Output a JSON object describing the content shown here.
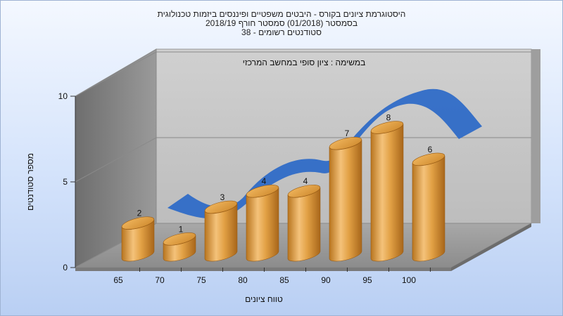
{
  "title_lines": [
    "היסטוגרמת ציונים בקורס - היבטים משפטיים ופיננסים ביזמות טכנולוגית",
    "בסמסטר  (01/2018)  סמסטר חורף 2018/19",
    "סטודנטים רשומים - 38"
  ],
  "subtitle": "במשימה : ציון סופי במחשב המרכזי",
  "chart_data": {
    "type": "bar",
    "categories": [
      "65",
      "70",
      "75",
      "80",
      "85",
      "90",
      "95",
      "100"
    ],
    "values": [
      2,
      1,
      3,
      4,
      4,
      7,
      8,
      6
    ],
    "yticks": [
      0,
      5,
      10
    ],
    "ylim": [
      0,
      10
    ],
    "xlabel": "טווח ציונים",
    "ylabel": "מספר סטודנטים",
    "bar_color": "#e8a040",
    "ribbon_color": "#2f6cc7"
  }
}
